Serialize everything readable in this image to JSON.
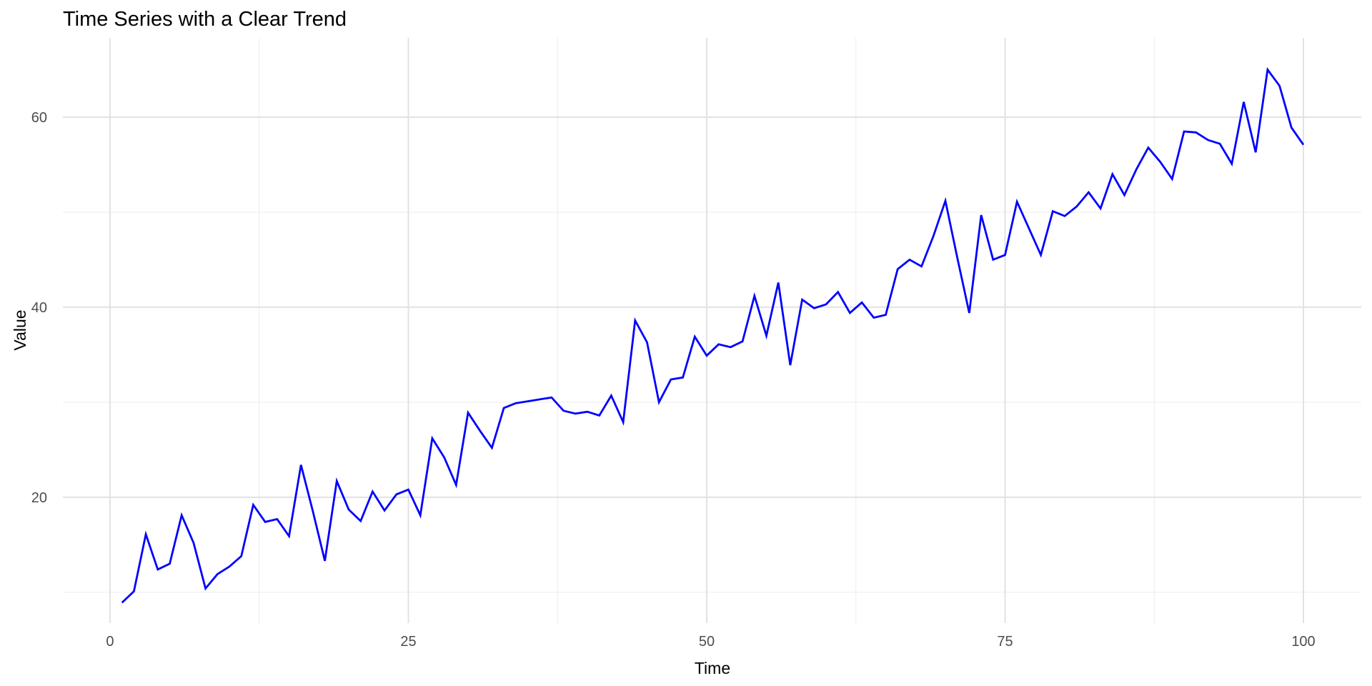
{
  "chart_data": {
    "type": "line",
    "title": "Time Series with a Clear Trend",
    "xlabel": "Time",
    "ylabel": "Value",
    "legend": "none",
    "grid": "on",
    "background": "#ffffff",
    "line_color": "#0000ff",
    "major_grid_color": "#e2e2e2",
    "minor_grid_color": "#efefef",
    "tick_text_color": "#4d4d4d",
    "title_text_color": "#000000",
    "xlim": [
      -3.95,
      104.85
    ],
    "ylim": [
      6.75,
      68.35
    ],
    "x_ticks_major": [
      0,
      25,
      50,
      75,
      100
    ],
    "x_ticks_minor": [
      12.5,
      37.5,
      62.5,
      87.5
    ],
    "y_ticks_major": [
      20,
      40,
      60
    ],
    "y_ticks_minor": [
      10,
      30,
      50
    ],
    "x": [
      1,
      2,
      3,
      4,
      5,
      6,
      7,
      8,
      9,
      10,
      11,
      12,
      13,
      14,
      15,
      16,
      17,
      18,
      19,
      20,
      21,
      22,
      23,
      24,
      25,
      26,
      27,
      28,
      29,
      30,
      31,
      32,
      33,
      34,
      35,
      36,
      37,
      38,
      39,
      40,
      41,
      42,
      43,
      44,
      45,
      46,
      47,
      48,
      49,
      50,
      51,
      52,
      53,
      54,
      55,
      56,
      57,
      58,
      59,
      60,
      61,
      62,
      63,
      64,
      65,
      66,
      67,
      68,
      69,
      70,
      71,
      72,
      73,
      74,
      75,
      76,
      77,
      78,
      79,
      80,
      81,
      82,
      83,
      84,
      85,
      86,
      87,
      88,
      89,
      90,
      91,
      92,
      93,
      94,
      95,
      96,
      97,
      98,
      99,
      100
    ],
    "values": [
      8.9,
      10.1,
      16.1,
      12.4,
      13.0,
      18.1,
      15.2,
      10.4,
      11.9,
      12.7,
      13.8,
      19.2,
      17.4,
      17.7,
      15.9,
      23.4,
      18.5,
      13.3,
      21.7,
      18.7,
      17.5,
      20.6,
      18.6,
      20.3,
      20.8,
      18.1,
      26.2,
      24.2,
      21.3,
      28.9,
      27.0,
      25.2,
      29.4,
      29.9,
      30.1,
      30.3,
      30.5,
      29.1,
      28.8,
      29.0,
      28.6,
      30.7,
      27.9,
      38.6,
      36.3,
      30.0,
      32.4,
      32.6,
      36.9,
      34.9,
      36.1,
      35.8,
      36.4,
      41.2,
      37.0,
      42.6,
      33.9,
      40.8,
      39.9,
      40.3,
      41.6,
      39.4,
      40.5,
      38.9,
      39.2,
      44.0,
      45.0,
      44.3,
      47.5,
      51.2,
      45.2,
      39.4,
      49.7,
      45.0,
      45.5,
      51.1,
      48.3,
      45.5,
      50.1,
      49.6,
      50.6,
      52.1,
      50.4,
      54.0,
      51.8,
      54.5,
      56.8,
      55.3,
      53.5,
      58.5,
      58.4,
      57.6,
      57.2,
      55.1,
      61.6,
      56.3,
      65.0,
      63.3,
      58.9,
      57.1
    ]
  }
}
